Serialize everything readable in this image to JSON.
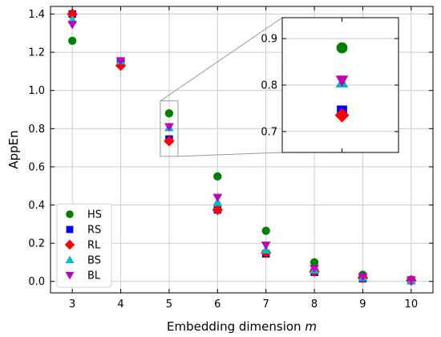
{
  "chart_data": {
    "type": "scatter",
    "xlabel": "Embedding dimension",
    "xlabel_var": "m",
    "ylabel": "AppEn",
    "x": [
      3,
      4,
      5,
      6,
      7,
      8,
      9,
      10
    ],
    "xlim": [
      2.55,
      10.45
    ],
    "ylim": [
      -0.06,
      1.44
    ],
    "xticks": [
      "3",
      "4",
      "5",
      "6",
      "7",
      "8",
      "9",
      "10"
    ],
    "yticks": [
      "0.0",
      "0.2",
      "0.4",
      "0.6",
      "0.8",
      "1.0",
      "1.2",
      "1.4"
    ],
    "grid": true,
    "legend_position": "lower-left",
    "series": [
      {
        "name": "HS",
        "marker": "circle",
        "color": "#008000",
        "values": [
          1.26,
          1.15,
          0.88,
          0.55,
          0.265,
          0.1,
          0.035,
          0.01
        ]
      },
      {
        "name": "RS",
        "marker": "square",
        "color": "#0000ff",
        "values": [
          1.4,
          1.15,
          0.745,
          0.375,
          0.145,
          0.048,
          0.015,
          0.005
        ]
      },
      {
        "name": "RL",
        "marker": "diamond",
        "color": "#ff0000",
        "values": [
          1.4,
          1.13,
          0.735,
          0.375,
          0.15,
          0.052,
          0.018,
          0.005
        ]
      },
      {
        "name": "BS",
        "marker": "triangle-up",
        "color": "#00bfbf",
        "values": [
          1.37,
          1.155,
          0.805,
          0.415,
          0.165,
          0.06,
          0.02,
          0.006
        ]
      },
      {
        "name": "BL",
        "marker": "triangle-down",
        "color": "#bf00bf",
        "values": [
          1.345,
          1.155,
          0.81,
          0.44,
          0.19,
          0.068,
          0.025,
          0.008
        ]
      }
    ],
    "inset": {
      "x": 5,
      "ylim": [
        0.655,
        0.945
      ],
      "yticks": [
        "0.7",
        "0.8",
        "0.9"
      ]
    }
  }
}
